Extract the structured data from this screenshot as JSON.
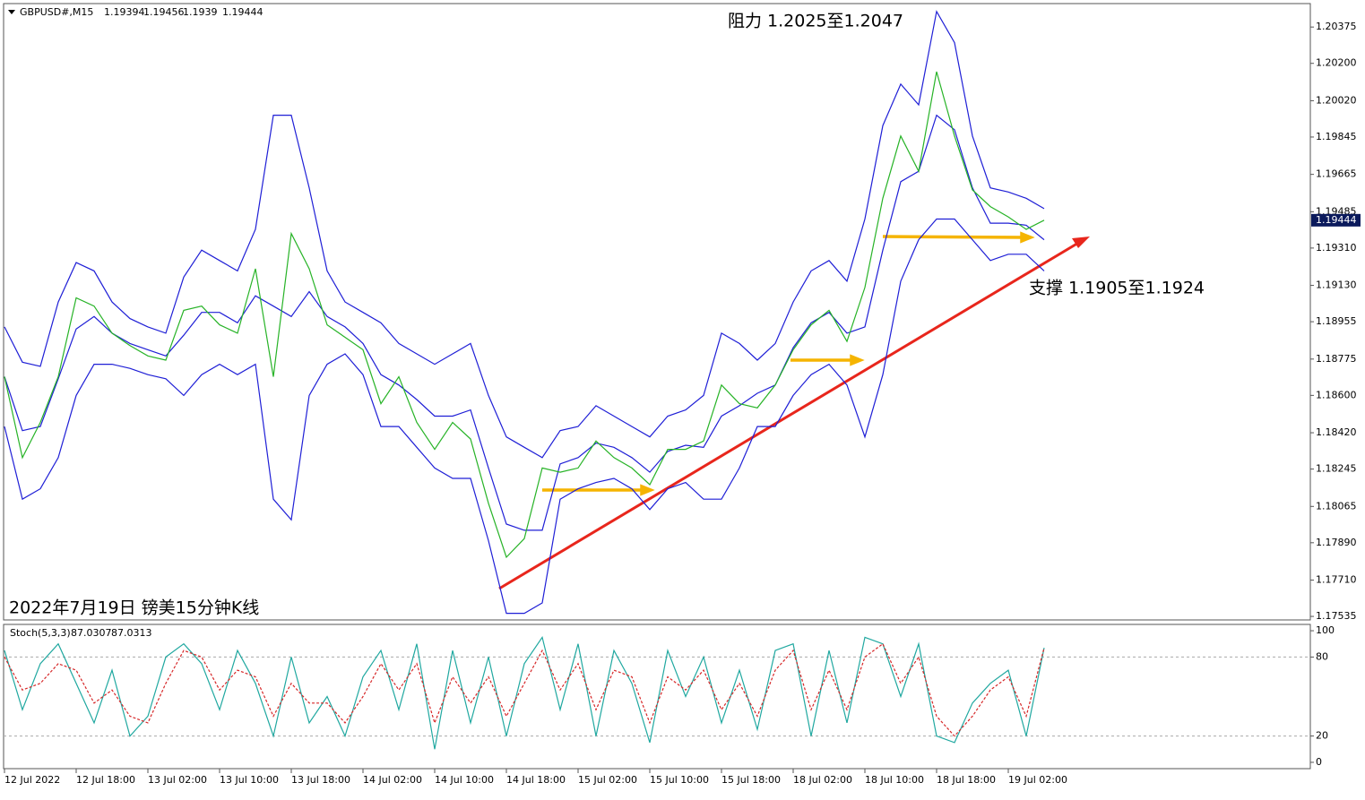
{
  "chart_data": [
    {
      "type": "line",
      "title": "GBPUSD#,M15",
      "ohlc": [
        1.19394,
        1.19456,
        1.1939,
        1.19444
      ],
      "annotations": [
        "阻力 1.2025至1.2047",
        "支撑 1.1905至1.1924",
        "2022年7月19日 镑美15分钟K线"
      ],
      "ylim": [
        1.17518,
        1.20488
      ],
      "yticks": [
        1.20375,
        {
          "value": 1.202,
          "label": "1.20200"
        },
        {
          "value": 1.2002,
          "label": "1.20020"
        },
        1.19845,
        1.19665,
        1.19485,
        {
          "value": 1.1931,
          "label": "1.19310"
        },
        {
          "value": 1.1913,
          "label": "1.19130"
        },
        1.18955,
        1.18775,
        {
          "value": 1.186,
          "label": "1.18600"
        },
        {
          "value": 1.1842,
          "label": "1.18420"
        },
        1.18245,
        1.18065,
        {
          "value": 1.1789,
          "label": "1.17890"
        },
        {
          "value": 1.1771,
          "label": "1.17710"
        },
        1.17535
      ],
      "series": [
        {
          "color": "#1f1fd6",
          "values": [
            1.1893,
            1.1876,
            1.1874,
            1.1905,
            1.1924,
            1.192,
            1.1905,
            1.1897,
            1.1893,
            1.189,
            1.1917,
            1.193,
            1.1925,
            1.192,
            1.194,
            1.1995,
            1.1995,
            1.196,
            1.192,
            1.1905,
            1.19,
            1.1895,
            1.1885,
            1.188,
            1.1875,
            1.188,
            1.1885,
            1.186,
            1.184,
            1.1835,
            1.183,
            1.1843,
            1.1845,
            1.1855,
            1.185,
            1.1845,
            1.184,
            1.185,
            1.1853,
            1.186,
            1.189,
            1.1885,
            1.1877,
            1.1885,
            1.1905,
            1.192,
            1.1925,
            1.1915,
            1.1945,
            1.199,
            1.201,
            1.2,
            1.2045,
            1.203,
            1.1985,
            1.196,
            1.1958,
            1.1955,
            1.195
          ]
        },
        {
          "color": "#1f1fd6",
          "values": [
            1.1869,
            1.1843,
            1.1845,
            1.1868,
            1.1892,
            1.1898,
            1.189,
            1.1885,
            1.1882,
            1.1879,
            1.1889,
            1.19,
            1.19,
            1.1895,
            1.1908,
            1.1903,
            1.1898,
            1.191,
            1.1898,
            1.1893,
            1.1885,
            1.187,
            1.1865,
            1.1858,
            1.185,
            1.185,
            1.1853,
            1.1825,
            1.1798,
            1.1795,
            1.1795,
            1.1827,
            1.183,
            1.1837,
            1.1835,
            1.183,
            1.1823,
            1.1833,
            1.1836,
            1.1835,
            1.185,
            1.1855,
            1.1861,
            1.1865,
            1.1883,
            1.1895,
            1.19,
            1.189,
            1.1893,
            1.193,
            1.1963,
            1.1968,
            1.1995,
            1.1988,
            1.196,
            1.1943,
            1.1943,
            1.1942,
            1.1935
          ]
        },
        {
          "color": "#1f1fd6",
          "values": [
            1.1845,
            1.181,
            1.1815,
            1.183,
            1.186,
            1.1875,
            1.1875,
            1.1873,
            1.187,
            1.1868,
            1.186,
            1.187,
            1.1875,
            1.187,
            1.1875,
            1.181,
            1.18,
            1.186,
            1.1875,
            1.188,
            1.187,
            1.1845,
            1.1845,
            1.1835,
            1.1825,
            1.182,
            1.182,
            1.179,
            1.1755,
            1.1755,
            1.176,
            1.181,
            1.1815,
            1.1818,
            1.182,
            1.1815,
            1.1805,
            1.1815,
            1.1818,
            1.181,
            1.181,
            1.1825,
            1.1845,
            1.1845,
            1.186,
            1.187,
            1.1875,
            1.1865,
            1.184,
            1.187,
            1.1915,
            1.1935,
            1.1945,
            1.1945,
            1.1935,
            1.1925,
            1.1928,
            1.1928,
            1.192
          ]
        },
        {
          "color": "#27b327",
          "values": [
            1.1869,
            1.183,
            1.1847,
            1.1869,
            1.1907,
            1.1903,
            1.189,
            1.1884,
            1.1879,
            1.1877,
            1.1901,
            1.1903,
            1.1894,
            1.189,
            1.1921,
            1.1869,
            1.1938,
            1.1921,
            1.1894,
            1.1888,
            1.1882,
            1.1856,
            1.1869,
            1.1847,
            1.1834,
            1.1847,
            1.1839,
            1.1808,
            1.1782,
            1.1791,
            1.1825,
            1.1823,
            1.1825,
            1.1838,
            1.183,
            1.1825,
            1.1817,
            1.1834,
            1.1834,
            1.1838,
            1.1865,
            1.1856,
            1.1854,
            1.1865,
            1.1882,
            1.1894,
            1.1901,
            1.1886,
            1.1912,
            1.1955,
            1.1985,
            1.1968,
            1.2016,
            1.1985,
            1.1959,
            1.1951,
            1.1946,
            1.194,
            1.19444
          ]
        }
      ]
    },
    {
      "type": "line",
      "title": "Stoch(5,3,3)",
      "categories": [
        "12 Jul 2022",
        null,
        null,
        null,
        "12 Jul 18:00",
        null,
        null,
        null,
        "13 Jul 02:00",
        null,
        null,
        null,
        "13 Jul 10:00",
        null,
        null,
        null,
        "13 Jul 18:00",
        null,
        null,
        null,
        "14 Jul 02:00",
        null,
        null,
        null,
        "14 Jul 10:00",
        null,
        null,
        null,
        "14 Jul 18:00",
        null,
        null,
        null,
        "15 Jul 02:00",
        null,
        null,
        null,
        "15 Jul 10:00",
        null,
        null,
        null,
        "15 Jul 18:00",
        null,
        null,
        null,
        "18 Jul 02:00",
        null,
        null,
        null,
        "18 Jul 10:00",
        null,
        null,
        null,
        "18 Jul 18:00",
        null,
        null,
        null,
        "19 Jul 02:00",
        null,
        null
      ],
      "ylim": [
        -4.8,
        104.8
      ],
      "yticks": [
        0,
        20,
        80,
        100
      ],
      "levels": [
        20,
        80
      ],
      "series": [
        {
          "color": "#20a8a0",
          "values": [
            85,
            40,
            75,
            90,
            60,
            30,
            70,
            20,
            35,
            80,
            90,
            75,
            40,
            85,
            60,
            20,
            80,
            30,
            50,
            20,
            65,
            85,
            40,
            90,
            10,
            85,
            30,
            80,
            20,
            75,
            95,
            40,
            90,
            20,
            85,
            60,
            15,
            85,
            50,
            80,
            30,
            70,
            25,
            85,
            90,
            20,
            85,
            30,
            95,
            90,
            50,
            90,
            20,
            15,
            45,
            60,
            70,
            20,
            87.0307
          ]
        },
        {
          "color": "#d62728",
          "dashed": true,
          "values": [
            80,
            55,
            60,
            75,
            70,
            45,
            55,
            35,
            30,
            60,
            85,
            80,
            55,
            70,
            65,
            35,
            60,
            45,
            45,
            30,
            50,
            75,
            55,
            75,
            30,
            65,
            45,
            65,
            35,
            60,
            85,
            55,
            75,
            40,
            70,
            65,
            30,
            65,
            55,
            70,
            40,
            60,
            35,
            70,
            85,
            40,
            70,
            40,
            80,
            90,
            60,
            80,
            35,
            20,
            35,
            55,
            65,
            35,
            87.0313
          ]
        }
      ]
    }
  ]
}
